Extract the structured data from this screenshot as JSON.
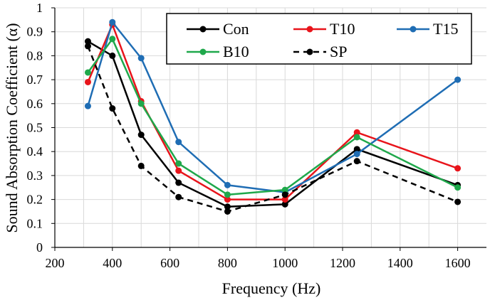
{
  "chart_data": {
    "type": "line",
    "title": "",
    "xlabel": "Frequency (Hz)",
    "ylabel": "Sound Absorption Coefficient (α)",
    "xlim": [
      200,
      1700
    ],
    "ylim": [
      0,
      1
    ],
    "xticks": [
      200,
      400,
      600,
      800,
      1000,
      1200,
      1400,
      1600
    ],
    "yticks": [
      0,
      0.1,
      0.2,
      0.3,
      0.4,
      0.5,
      0.6,
      0.7,
      0.8,
      0.9,
      1
    ],
    "xtick_labels": [
      "200",
      "400",
      "600",
      "800",
      "1000",
      "1200",
      "1400",
      "1600"
    ],
    "ytick_labels": [
      "0",
      "0.1",
      "0.2",
      "0.3",
      "0.4",
      "0.5",
      "0.6",
      "0.7",
      "0.8",
      "0.9",
      "1"
    ],
    "grid": true,
    "legend_position": "top-right, boxed, 3 columns",
    "x": [
      315,
      400,
      500,
      630,
      800,
      1000,
      1250,
      1600
    ],
    "series": [
      {
        "name": "Con",
        "color": "#000000",
        "dash": "solid",
        "values": [
          0.86,
          0.8,
          0.47,
          0.27,
          0.17,
          0.18,
          0.41,
          0.26
        ]
      },
      {
        "name": "T10",
        "color": "#e8141b",
        "dash": "solid",
        "values": [
          0.69,
          0.93,
          0.61,
          0.32,
          0.2,
          0.2,
          0.48,
          0.33
        ]
      },
      {
        "name": "T15",
        "color": "#1f6db4",
        "dash": "solid",
        "values": [
          0.59,
          0.94,
          0.79,
          0.44,
          0.26,
          0.23,
          0.39,
          0.7
        ]
      },
      {
        "name": "B10",
        "color": "#1fa84b",
        "dash": "solid",
        "values": [
          0.73,
          0.87,
          0.6,
          0.35,
          0.22,
          0.24,
          0.46,
          0.25
        ]
      },
      {
        "name": "SP",
        "color": "#000000",
        "dash": "dashed",
        "values": [
          0.84,
          0.58,
          0.34,
          0.21,
          0.15,
          0.22,
          0.36,
          0.19
        ]
      }
    ]
  }
}
